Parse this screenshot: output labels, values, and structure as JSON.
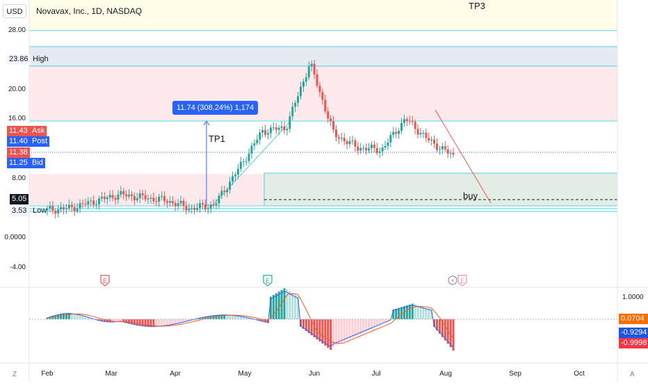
{
  "header": {
    "currency": "USD",
    "symbol_title": "Novavax, Inc., 1D, NASDAQ"
  },
  "price_axis": {
    "ticks": [
      "28.00",
      "20.00",
      "16.00",
      "8.00",
      "0.0000",
      "-4.00"
    ],
    "ticks_values": [
      28,
      20,
      16,
      8,
      0,
      -4
    ]
  },
  "price_chips": {
    "high_value": "23.86",
    "high_label": "High",
    "ask_value": "11.43",
    "ask_label": "Ask",
    "post_value": "11.40",
    "post_label": "Post",
    "last_value": "11.38",
    "bid_value": "11.25",
    "bid_label": "Bid",
    "buy_level": "5.05",
    "low_value": "3.53",
    "low_label": "Low"
  },
  "annotations": {
    "tp1": "TP1",
    "tp3": "TP3",
    "buy": "buy",
    "measure": "11.74 (308.24%) 1,174"
  },
  "event_markers": {
    "earnings_1": "E",
    "earnings_2": "E",
    "earnings_3": "E",
    "split": "⚡"
  },
  "oscillator_axis": {
    "top_tick": "1.0000",
    "chip_orange": "0.0704",
    "chip_blue": "-0.9294",
    "chip_red": "-0.9998"
  },
  "time_axis": {
    "labels": [
      "Feb",
      "Mar",
      "Apr",
      "May",
      "Jun",
      "Jul",
      "Aug",
      "Sep",
      "Oct"
    ],
    "left_corner": "Z",
    "right_corner": "A"
  },
  "colors": {
    "up": "#26a69a",
    "down": "#ef5350",
    "tp_line": "#4dd0e1",
    "measure_blue": "#2962ff",
    "zone_pink": "#fde8ec",
    "zone_blue": "#e4e9f2",
    "zone_yellow": "#fffde7",
    "zone_green": "#e3ede5",
    "macd_line": "#2962ff",
    "signal_line": "#ff5722"
  },
  "chart_data": {
    "type": "candlestick",
    "title": "Novavax, Inc., 1D, NASDAQ",
    "y_unit": "USD",
    "ylim": [
      -4,
      28
    ],
    "x_range": [
      "Jan",
      "Oct"
    ],
    "series_approx_weekly_close": [
      {
        "date": "Jan",
        "close": 4.1
      },
      {
        "date": "Feb",
        "close": 4.4
      },
      {
        "date": "Feb",
        "close": 5.3
      },
      {
        "date": "Mar",
        "close": 6.2
      },
      {
        "date": "Mar",
        "close": 5.8
      },
      {
        "date": "Apr",
        "close": 5.4
      },
      {
        "date": "Apr",
        "close": 4.3
      },
      {
        "date": "May",
        "close": 4.8
      },
      {
        "date": "May",
        "close": 9.6
      },
      {
        "date": "May",
        "close": 14.7
      },
      {
        "date": "Jun",
        "close": 15.2
      },
      {
        "date": "Jun",
        "close": 23.86
      },
      {
        "date": "Jun",
        "close": 14.3
      },
      {
        "date": "Jul",
        "close": 12.5
      },
      {
        "date": "Jul",
        "close": 12.2
      },
      {
        "date": "Jul",
        "close": 16.4
      },
      {
        "date": "Aug",
        "close": 13.4
      },
      {
        "date": "Aug",
        "close": 11.38
      }
    ],
    "levels": {
      "high": 23.86,
      "ask": 11.43,
      "post": 11.4,
      "last": 11.38,
      "bid": 11.25,
      "buy": 5.05,
      "low": 3.53
    }
  }
}
